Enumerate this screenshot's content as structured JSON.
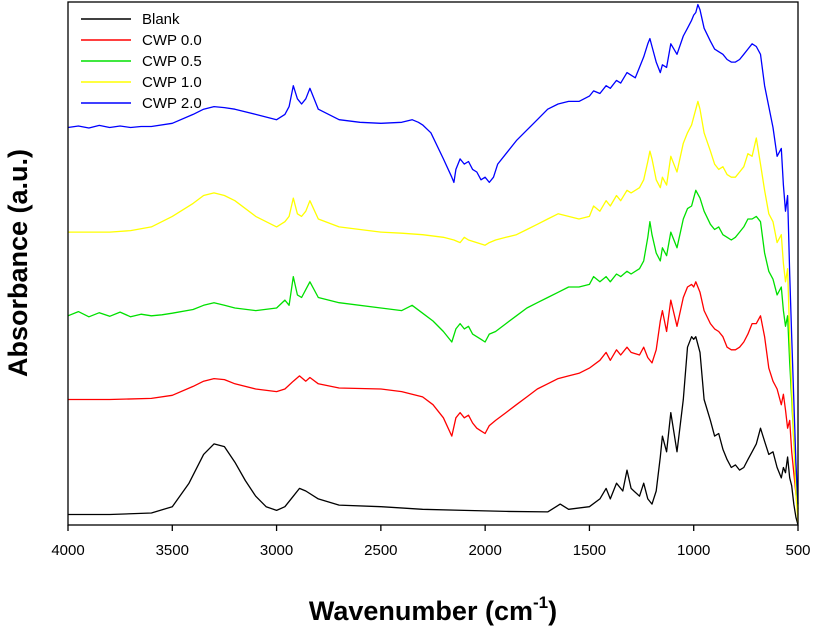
{
  "chart_data": {
    "type": "line",
    "xlabel": "Wavenumber (cm",
    "xlabel_sup": "-1",
    "xlabel_close": ")",
    "ylabel": "Absorbance (a.u.)",
    "xlim": [
      4000,
      500
    ],
    "ylim": [
      0,
      100
    ],
    "x_inverted": true,
    "x_ticks": [
      4000,
      3500,
      3000,
      2500,
      2000,
      1500,
      1000,
      500
    ],
    "y_ticks_visible": false,
    "grid": false,
    "legend_position": "top-left",
    "series": [
      {
        "name": "Blank",
        "color": "#000000",
        "x": [
          4000,
          3800,
          3600,
          3500,
          3420,
          3350,
          3300,
          3250,
          3200,
          3150,
          3100,
          3050,
          3000,
          2960,
          2920,
          2890,
          2860,
          2800,
          2700,
          2500,
          2300,
          2100,
          1900,
          1700,
          1660,
          1640,
          1620,
          1600,
          1500,
          1450,
          1420,
          1400,
          1370,
          1340,
          1320,
          1300,
          1260,
          1240,
          1220,
          1200,
          1180,
          1160,
          1150,
          1130,
          1110,
          1080,
          1050,
          1030,
          1010,
          1000,
          990,
          970,
          950,
          920,
          900,
          880,
          860,
          840,
          820,
          800,
          780,
          760,
          740,
          720,
          700,
          680,
          660,
          640,
          620,
          600,
          580,
          570,
          560,
          550,
          540,
          530,
          520,
          510,
          500
        ],
        "y": [
          2.0,
          2.0,
          2.3,
          3.5,
          8.0,
          13.5,
          15.5,
          15.0,
          12.0,
          8.5,
          5.5,
          3.5,
          2.8,
          3.5,
          5.5,
          7.0,
          6.5,
          5.0,
          3.8,
          3.5,
          3.0,
          2.8,
          2.6,
          2.5,
          3.5,
          4.0,
          3.5,
          3.0,
          3.5,
          5.0,
          7.0,
          5.0,
          8.0,
          6.5,
          10.5,
          7.0,
          5.5,
          8.0,
          5.0,
          4.0,
          6.5,
          13.0,
          17.0,
          14.0,
          21.5,
          14.0,
          24.0,
          34.0,
          36.0,
          35.5,
          36.0,
          33.0,
          24.0,
          20.0,
          17.0,
          17.5,
          14.5,
          12.5,
          11.0,
          11.5,
          10.5,
          11.0,
          12.5,
          14.0,
          15.5,
          18.5,
          16.0,
          13.5,
          14.0,
          11.0,
          9.0,
          11.0,
          10.0,
          13.0,
          9.0,
          7.5,
          4.0,
          1.5,
          0.0
        ]
      },
      {
        "name": "CWP 0.0",
        "color": "#ff0000",
        "x": [
          4000,
          3800,
          3600,
          3500,
          3400,
          3350,
          3300,
          3250,
          3200,
          3100,
          3000,
          2960,
          2920,
          2890,
          2860,
          2840,
          2800,
          2700,
          2500,
          2400,
          2350,
          2300,
          2250,
          2200,
          2160,
          2140,
          2120,
          2100,
          2080,
          2060,
          2040,
          2020,
          2000,
          1980,
          1950,
          1900,
          1850,
          1800,
          1750,
          1700,
          1650,
          1600,
          1550,
          1500,
          1450,
          1420,
          1400,
          1370,
          1350,
          1320,
          1300,
          1260,
          1240,
          1220,
          1200,
          1180,
          1160,
          1150,
          1130,
          1110,
          1080,
          1050,
          1030,
          1010,
          1000,
          990,
          970,
          950,
          920,
          900,
          880,
          860,
          840,
          820,
          800,
          780,
          760,
          740,
          720,
          700,
          680,
          660,
          640,
          620,
          600,
          580,
          570,
          560,
          550,
          540,
          530,
          520,
          510,
          500
        ],
        "y": [
          24.0,
          24.0,
          24.2,
          24.8,
          26.5,
          27.5,
          28.0,
          27.8,
          27.0,
          26.0,
          25.5,
          26.0,
          27.5,
          28.5,
          27.5,
          28.2,
          27.0,
          26.2,
          26.0,
          25.5,
          25.0,
          24.5,
          23.0,
          20.5,
          17.0,
          20.5,
          21.5,
          20.5,
          21.0,
          19.5,
          18.5,
          18.0,
          17.5,
          19.0,
          20.0,
          21.5,
          23.0,
          24.5,
          26.0,
          27.0,
          28.0,
          28.5,
          29.0,
          30.0,
          31.5,
          33.0,
          31.5,
          33.5,
          32.5,
          34.0,
          33.0,
          32.5,
          34.0,
          32.0,
          31.0,
          33.5,
          39.0,
          41.0,
          37.0,
          43.0,
          38.0,
          43.5,
          45.5,
          46.0,
          45.5,
          46.5,
          44.5,
          41.0,
          38.5,
          37.5,
          37.0,
          36.0,
          34.0,
          33.5,
          33.5,
          34.0,
          35.0,
          36.5,
          38.5,
          38.5,
          40.0,
          36.0,
          30.0,
          27.5,
          26.0,
          23.0,
          25.0,
          22.0,
          18.5,
          20.0,
          14.0,
          10.0,
          6.0,
          2.0
        ]
      },
      {
        "name": "CWP 0.5",
        "color": "#00e000",
        "x": [
          4000,
          3950,
          3900,
          3850,
          3800,
          3750,
          3700,
          3650,
          3600,
          3550,
          3500,
          3400,
          3350,
          3300,
          3250,
          3200,
          3100,
          3000,
          2960,
          2940,
          2920,
          2900,
          2880,
          2860,
          2840,
          2800,
          2700,
          2500,
          2400,
          2350,
          2300,
          2250,
          2200,
          2160,
          2140,
          2120,
          2100,
          2080,
          2060,
          2040,
          2020,
          2000,
          1980,
          1950,
          1900,
          1850,
          1800,
          1750,
          1700,
          1650,
          1600,
          1550,
          1500,
          1480,
          1450,
          1420,
          1400,
          1370,
          1350,
          1320,
          1300,
          1260,
          1240,
          1220,
          1210,
          1200,
          1180,
          1160,
          1150,
          1130,
          1110,
          1080,
          1050,
          1030,
          1010,
          1000,
          990,
          970,
          950,
          920,
          900,
          880,
          860,
          840,
          820,
          800,
          780,
          760,
          740,
          720,
          700,
          680,
          660,
          640,
          620,
          600,
          580,
          570,
          560,
          550,
          540,
          530,
          520,
          510,
          500
        ],
        "y": [
          40.0,
          40.8,
          39.8,
          40.6,
          39.9,
          40.7,
          39.8,
          40.3,
          40.0,
          40.2,
          40.5,
          41.2,
          42.0,
          42.5,
          42.0,
          41.5,
          41.0,
          41.5,
          43.0,
          42.0,
          47.5,
          44.0,
          43.5,
          45.0,
          46.5,
          43.5,
          42.5,
          41.5,
          41.0,
          42.0,
          40.5,
          39.0,
          37.0,
          35.0,
          37.5,
          38.5,
          37.5,
          38.0,
          36.5,
          36.0,
          35.5,
          35.0,
          36.5,
          37.0,
          38.5,
          40.0,
          41.5,
          42.5,
          43.5,
          44.5,
          45.5,
          45.5,
          46.0,
          47.5,
          46.5,
          47.5,
          46.5,
          48.0,
          47.5,
          48.5,
          48.0,
          49.0,
          50.5,
          55.0,
          58.0,
          55.5,
          52.0,
          50.5,
          53.0,
          51.5,
          56.0,
          53.0,
          58.5,
          60.5,
          61.0,
          62.5,
          64.0,
          62.5,
          60.0,
          57.5,
          56.5,
          57.0,
          55.5,
          55.0,
          54.5,
          55.0,
          56.0,
          57.0,
          58.5,
          58.5,
          59.0,
          58.0,
          52.0,
          48.5,
          47.0,
          44.0,
          45.5,
          41.0,
          38.0,
          40.0,
          31.0,
          24.0,
          16.0,
          10.0,
          3.0
        ]
      },
      {
        "name": "CWP 1.0",
        "color": "#ffff00",
        "x": [
          4000,
          3800,
          3700,
          3600,
          3500,
          3400,
          3350,
          3300,
          3250,
          3200,
          3100,
          3000,
          2960,
          2940,
          2920,
          2900,
          2880,
          2860,
          2840,
          2800,
          2700,
          2600,
          2500,
          2400,
          2300,
          2200,
          2150,
          2120,
          2100,
          2080,
          2040,
          2000,
          1980,
          1950,
          1900,
          1850,
          1800,
          1750,
          1700,
          1650,
          1600,
          1550,
          1500,
          1480,
          1450,
          1420,
          1400,
          1370,
          1350,
          1320,
          1300,
          1260,
          1240,
          1220,
          1210,
          1200,
          1180,
          1160,
          1150,
          1130,
          1110,
          1080,
          1050,
          1030,
          1010,
          1000,
          990,
          980,
          970,
          950,
          920,
          900,
          880,
          860,
          840,
          820,
          800,
          780,
          760,
          740,
          720,
          700,
          680,
          660,
          640,
          620,
          600,
          580,
          570,
          560,
          550,
          540,
          530,
          520,
          510,
          500
        ],
        "y": [
          56.0,
          56.0,
          56.3,
          57.0,
          59.0,
          61.5,
          63.0,
          63.5,
          63.0,
          62.0,
          59.0,
          57.0,
          58.0,
          59.0,
          62.5,
          59.5,
          59.0,
          60.0,
          62.0,
          58.5,
          57.0,
          56.5,
          56.0,
          55.8,
          55.5,
          55.0,
          54.5,
          54.0,
          55.0,
          54.5,
          54.0,
          53.5,
          54.0,
          54.5,
          55.0,
          55.5,
          56.5,
          57.5,
          58.5,
          59.5,
          59.0,
          58.5,
          59.0,
          61.0,
          60.0,
          62.0,
          61.0,
          63.0,
          62.0,
          64.0,
          63.5,
          64.5,
          66.0,
          69.5,
          71.5,
          70.0,
          66.0,
          64.5,
          66.5,
          65.0,
          70.5,
          67.5,
          73.0,
          75.0,
          76.5,
          78.0,
          79.5,
          81.0,
          79.5,
          75.0,
          71.5,
          69.0,
          68.0,
          68.5,
          67.0,
          66.5,
          66.5,
          67.5,
          68.5,
          71.0,
          70.5,
          74.0,
          69.0,
          64.0,
          59.5,
          58.0,
          54.0,
          55.5,
          50.0,
          46.5,
          49.0,
          36.0,
          26.0,
          16.0,
          6.0,
          0.5
        ]
      },
      {
        "name": "CWP 2.0",
        "color": "#0000ff",
        "x": [
          4000,
          3950,
          3900,
          3850,
          3800,
          3750,
          3700,
          3650,
          3600,
          3500,
          3400,
          3350,
          3300,
          3250,
          3200,
          3100,
          3000,
          2960,
          2940,
          2920,
          2900,
          2880,
          2860,
          2840,
          2800,
          2700,
          2600,
          2500,
          2400,
          2350,
          2320,
          2300,
          2260,
          2200,
          2160,
          2150,
          2140,
          2120,
          2100,
          2080,
          2060,
          2040,
          2020,
          2000,
          1980,
          1960,
          1940,
          1900,
          1850,
          1800,
          1750,
          1700,
          1650,
          1600,
          1550,
          1500,
          1480,
          1450,
          1420,
          1400,
          1370,
          1350,
          1320,
          1300,
          1280,
          1260,
          1240,
          1220,
          1210,
          1200,
          1180,
          1160,
          1150,
          1130,
          1110,
          1080,
          1050,
          1030,
          1010,
          1000,
          990,
          980,
          970,
          950,
          920,
          900,
          880,
          860,
          840,
          820,
          800,
          780,
          760,
          740,
          720,
          700,
          680,
          660,
          640,
          620,
          600,
          580,
          570,
          560,
          550,
          540,
          530,
          520,
          510,
          500
        ],
        "y": [
          76.0,
          76.3,
          75.9,
          76.4,
          76.0,
          76.3,
          76.0,
          76.2,
          76.2,
          76.8,
          78.5,
          79.5,
          80.0,
          79.8,
          79.5,
          78.5,
          77.5,
          78.5,
          80.0,
          84.0,
          81.5,
          80.5,
          81.5,
          83.5,
          79.5,
          77.5,
          77.0,
          76.8,
          77.0,
          77.5,
          77.0,
          76.5,
          75.0,
          70.0,
          66.5,
          65.5,
          68.0,
          70.0,
          69.0,
          69.5,
          68.0,
          67.5,
          66.0,
          66.5,
          65.5,
          66.5,
          69.0,
          71.0,
          73.5,
          75.5,
          77.5,
          79.5,
          80.5,
          81.0,
          81.0,
          82.0,
          83.0,
          82.5,
          84.0,
          83.5,
          85.0,
          84.5,
          86.5,
          86.0,
          85.5,
          87.5,
          89.5,
          92.0,
          93.0,
          91.5,
          88.5,
          86.5,
          88.0,
          87.5,
          92.0,
          90.0,
          93.5,
          95.0,
          96.5,
          97.5,
          98.0,
          99.5,
          98.5,
          95.0,
          92.5,
          91.0,
          90.5,
          90.0,
          89.0,
          88.5,
          88.5,
          89.0,
          90.0,
          91.0,
          92.0,
          91.5,
          90.0,
          84.0,
          80.0,
          76.0,
          70.5,
          72.0,
          65.0,
          60.0,
          63.0,
          48.0,
          36.0,
          24.0,
          12.0,
          4.0
        ]
      }
    ]
  }
}
